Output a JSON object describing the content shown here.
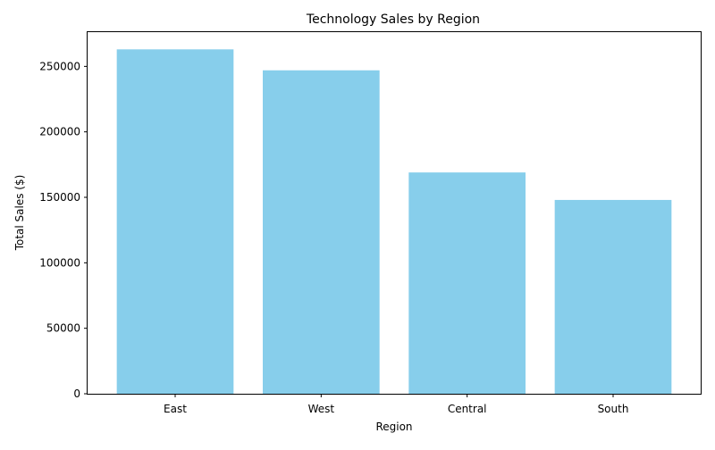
{
  "chart_data": {
    "type": "bar",
    "title": "Technology Sales by Region",
    "xlabel": "Region",
    "ylabel": "Total Sales ($)",
    "categories": [
      "East",
      "West",
      "Central",
      "South"
    ],
    "values": [
      263000,
      247000,
      169000,
      148000
    ],
    "ylim": [
      0,
      276150
    ],
    "yticks": [
      0,
      50000,
      100000,
      150000,
      200000,
      250000
    ],
    "bar_color": "#87CEEB",
    "grid": false,
    "legend": "none"
  }
}
